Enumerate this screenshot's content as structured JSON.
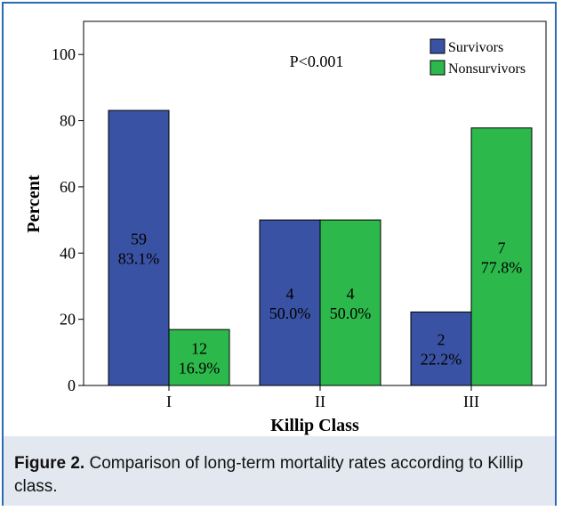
{
  "chart_data": {
    "type": "bar",
    "categories": [
      "I",
      "II",
      "III"
    ],
    "series": [
      {
        "name": "Survivors",
        "color": "#3a52a3",
        "values": [
          83.1,
          50.0,
          22.2
        ],
        "counts": [
          "59",
          "4",
          "2"
        ],
        "labels": [
          "83.1%",
          "50.0%",
          "22.2%"
        ]
      },
      {
        "name": "Nonsurvivors",
        "color": "#2db84b",
        "values": [
          16.9,
          50.0,
          77.8
        ],
        "counts": [
          "12",
          "4",
          "7"
        ],
        "labels": [
          "16.9%",
          "50.0%",
          "77.8%"
        ]
      }
    ],
    "xlabel": "Killip Class",
    "ylabel": "Percent",
    "ylim": [
      0,
      110
    ],
    "yticks": [
      0,
      20,
      40,
      60,
      80,
      100
    ],
    "annotation": "P<0.001",
    "legend_position": "top-right",
    "grid": false
  },
  "caption": {
    "label": "Figure 2.",
    "text": " Comparison of long-term mortality rates according to Killip class."
  }
}
